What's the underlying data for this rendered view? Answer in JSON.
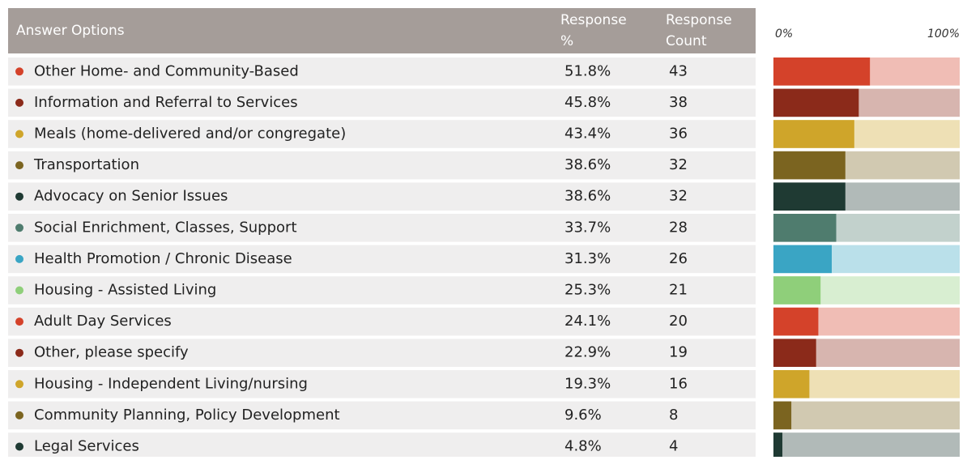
{
  "chart_data": {
    "type": "bar",
    "columns": [
      "Answer Options",
      "Response %",
      "Response Count"
    ],
    "categories": [
      "Other Home- and Community-Based",
      "Information and Referral to Services",
      "Meals (home-delivered and/or congregate)",
      "Transportation",
      "Advocacy on Senior Issues",
      "Social Enrichment, Classes, Support",
      "Health Promotion / Chronic Disease",
      "Housing - Assisted Living",
      "Adult Day Services",
      "Other, please specify",
      "Housing - Independent Living/nursing",
      "Community Planning, Policy Development",
      "Legal Services"
    ],
    "values": [
      51.8,
      45.8,
      43.4,
      38.6,
      38.6,
      33.7,
      31.3,
      25.3,
      24.1,
      22.9,
      19.3,
      9.6,
      4.8
    ],
    "value_labels": [
      "51.8%",
      "45.8%",
      "43.4%",
      "38.6%",
      "38.6%",
      "33.7%",
      "31.3%",
      "25.3%",
      "24.1%",
      "22.9%",
      "19.3%",
      "9.6%",
      "4.8%"
    ],
    "counts": [
      43,
      38,
      36,
      32,
      32,
      28,
      26,
      21,
      20,
      19,
      16,
      8,
      4
    ],
    "colors": [
      "#d4422a",
      "#8b2a1a",
      "#cfa52a",
      "#7b6420",
      "#1f3a33",
      "#4f7c6e",
      "#3aa5c4",
      "#8fcf7a",
      "#d4422a",
      "#8b2a1a",
      "#cfa52a",
      "#7b6420",
      "#1f3a33"
    ],
    "xlim": [
      0,
      100
    ],
    "xticks": [
      {
        "value": 0,
        "label": "0%"
      },
      {
        "value": 100,
        "label": "100%"
      }
    ]
  }
}
